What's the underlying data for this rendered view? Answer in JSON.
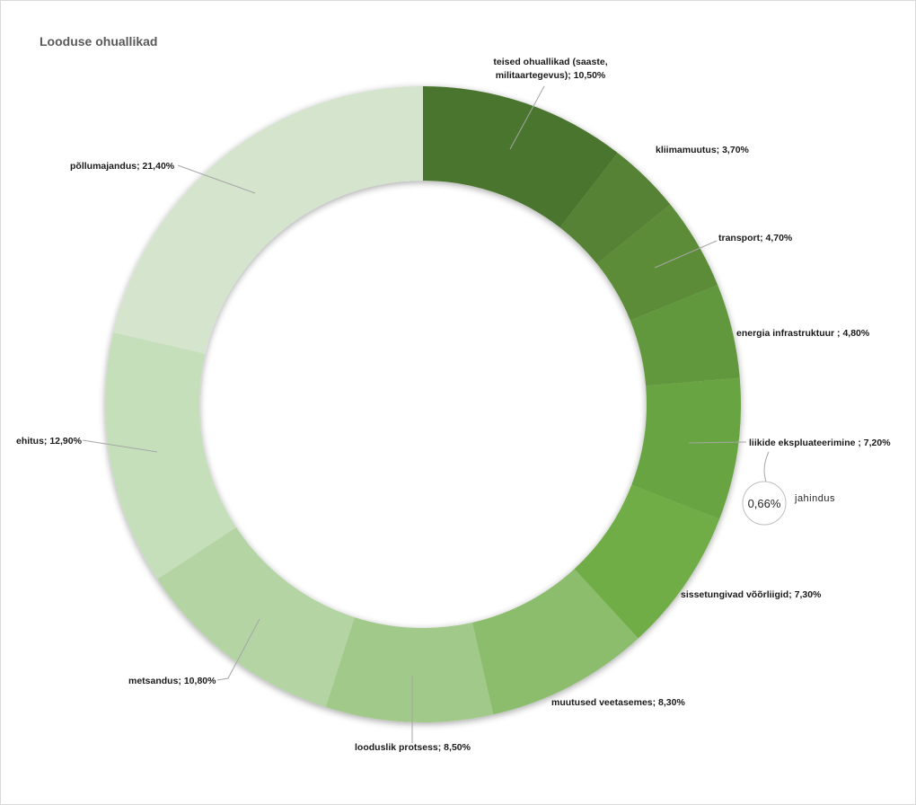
{
  "chart_data": {
    "type": "pie",
    "variant": "donut",
    "title": "Looduse ohuallikad",
    "legend": "none",
    "slices": [
      {
        "name": "teised ohuallikad (saaste, militaartegevus)",
        "label_lines": [
          "teised ohuallikad (saaste,",
          "militaartegevus); 10,50%"
        ],
        "value": 10.5,
        "color": "#4a752d"
      },
      {
        "name": "kliimamuutus",
        "label_lines": [
          "kliimamuutus; 3,70%"
        ],
        "value": 3.7,
        "color": "#548235"
      },
      {
        "name": "transport",
        "label_lines": [
          "transport;  4,70%"
        ],
        "value": 4.7,
        "color": "#5b8c38"
      },
      {
        "name": "energia infrastruktuur",
        "label_lines": [
          "energia infrastruktuur ; 4,80%"
        ],
        "value": 4.8,
        "color": "#62983d"
      },
      {
        "name": "liikide ekspluateerimine",
        "label_lines": [
          "liikide ekspluateerimine ; 7,20%"
        ],
        "value": 7.2,
        "color": "#69a442"
      },
      {
        "name": "sissetungivad võõrliigid",
        "label_lines": [
          "sissetungivad võõrliigid; 7,30%"
        ],
        "value": 7.3,
        "color": "#70ad47"
      },
      {
        "name": "muutused veetasemes",
        "label_lines": [
          "muutused veetasemes; 8,30%"
        ],
        "value": 8.3,
        "color": "#8cbd6d"
      },
      {
        "name": "looduslik protsess",
        "label_lines": [
          "looduslik protsess; 8,50%"
        ],
        "value": 8.5,
        "color": "#a1ca8a"
      },
      {
        "name": "metsandus",
        "label_lines": [
          "metsandus; 10,80%"
        ],
        "value": 10.8,
        "color": "#b4d5a3"
      },
      {
        "name": "ehitus",
        "label_lines": [
          "ehitus; 12,90%"
        ],
        "value": 12.9,
        "color": "#c6dfbb"
      },
      {
        "name": "põllumajandus",
        "label_lines": [
          "põllumajandus;  21,40%"
        ],
        "value": 21.4,
        "color": "#d5e4cd"
      }
    ],
    "annotation": {
      "value_text": "0,66%",
      "caption": "jahindus",
      "attached_to": "liikide ekspluateerimine"
    }
  }
}
